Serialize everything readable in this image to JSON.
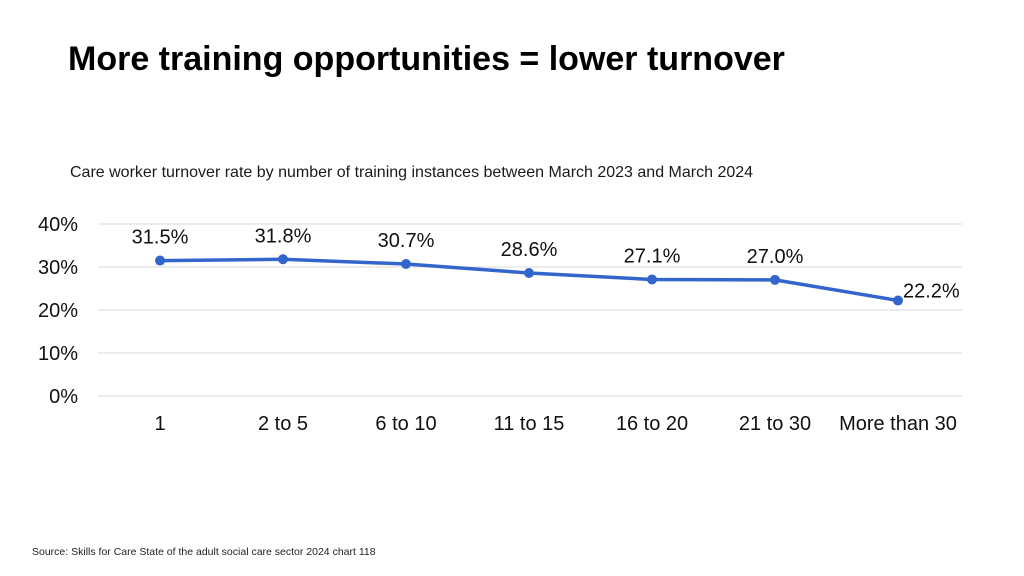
{
  "title": "More training opportunities = lower turnover",
  "source": "Source: Skills for Care State of the adult social care sector 2024 chart 118",
  "colors": {
    "line": "#3366cc",
    "grid": "#d9d9d9"
  },
  "chart_data": {
    "type": "line",
    "title": "Care worker turnover rate by number of training instances between March 2023 and March 2024",
    "xlabel": "",
    "ylabel": "",
    "categories": [
      "1",
      "2 to 5",
      "6 to 10",
      "11 to 15",
      "16 to 20",
      "21 to 30",
      "More than 30"
    ],
    "values": [
      31.5,
      31.8,
      30.7,
      28.6,
      27.1,
      27.0,
      22.2
    ],
    "data_labels": [
      "31.5%",
      "31.8%",
      "30.7%",
      "28.6%",
      "27.1%",
      "27.0%",
      "22.2%"
    ],
    "ylim": [
      0,
      40
    ],
    "yticks": [
      0,
      10,
      20,
      30,
      40
    ],
    "ytick_labels": [
      "0%",
      "10%",
      "20%",
      "30%",
      "40%"
    ],
    "grid": true,
    "legend": "none"
  }
}
